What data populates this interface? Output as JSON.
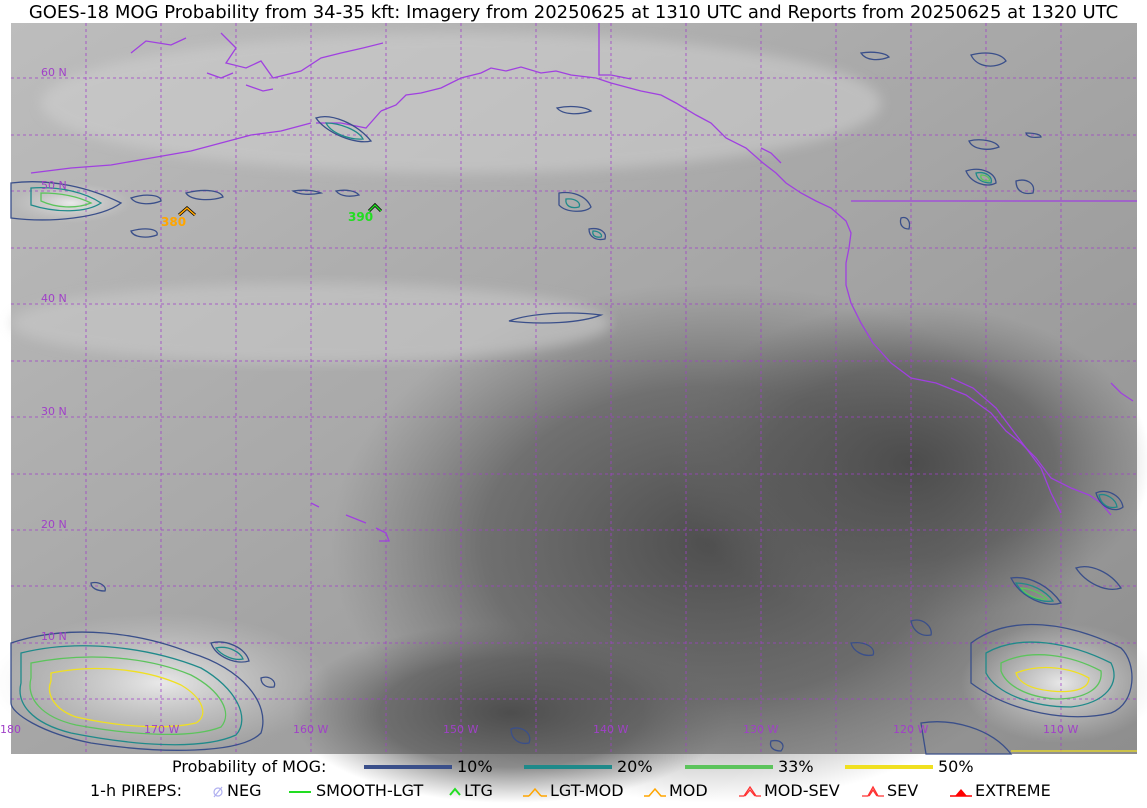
{
  "title": "GOES-18 MOG Probability from 34-35 kft: Imagery from 20250625 at 1310 UTC and Reports from 20250625 at 1320 UTC",
  "map": {
    "lat_labels": [
      "60 N",
      "50 N",
      "40 N",
      "30 N",
      "20 N",
      "10 N"
    ],
    "lon_labels": [
      "180",
      "170 W",
      "160 W",
      "150 W",
      "140 W",
      "130 W",
      "120 W",
      "110 W"
    ],
    "grid_color": "#a040c8",
    "coast_color": "#a040e0",
    "pireps": [
      {
        "type": "LGT-MOD",
        "label": "380",
        "color": "#ffa500"
      },
      {
        "type": "LTG",
        "label": "390",
        "color": "#22dd22"
      }
    ]
  },
  "legend": {
    "prob_title": "Probability of MOG:",
    "prob_levels": [
      {
        "label": "10%",
        "color": "#3a4f8a"
      },
      {
        "label": "20%",
        "color": "#1f8a8a"
      },
      {
        "label": "33%",
        "color": "#5cc45c"
      },
      {
        "label": "50%",
        "color": "#f0e020"
      }
    ],
    "pirep_title": "1-h PIREPS:",
    "pirep_types": [
      {
        "label": "NEG",
        "icon": "neg-icon",
        "color": "#b0b0f0"
      },
      {
        "label": "SMOOTH-LGT",
        "icon": "smooth-lgt-icon",
        "color": "#22dd22"
      },
      {
        "label": "LTG",
        "icon": "ltg-icon",
        "color": "#22dd22"
      },
      {
        "label": "LGT-MOD",
        "icon": "lgt-mod-icon",
        "color": "#ffa500"
      },
      {
        "label": "MOD",
        "icon": "mod-icon",
        "color": "#ffa500"
      },
      {
        "label": "MOD-SEV",
        "icon": "mod-sev-icon",
        "color": "#ff3030"
      },
      {
        "label": "SEV",
        "icon": "sev-icon",
        "color": "#ff3030"
      },
      {
        "label": "EXTREME",
        "icon": "extreme-icon",
        "color": "#ff0000"
      }
    ]
  }
}
